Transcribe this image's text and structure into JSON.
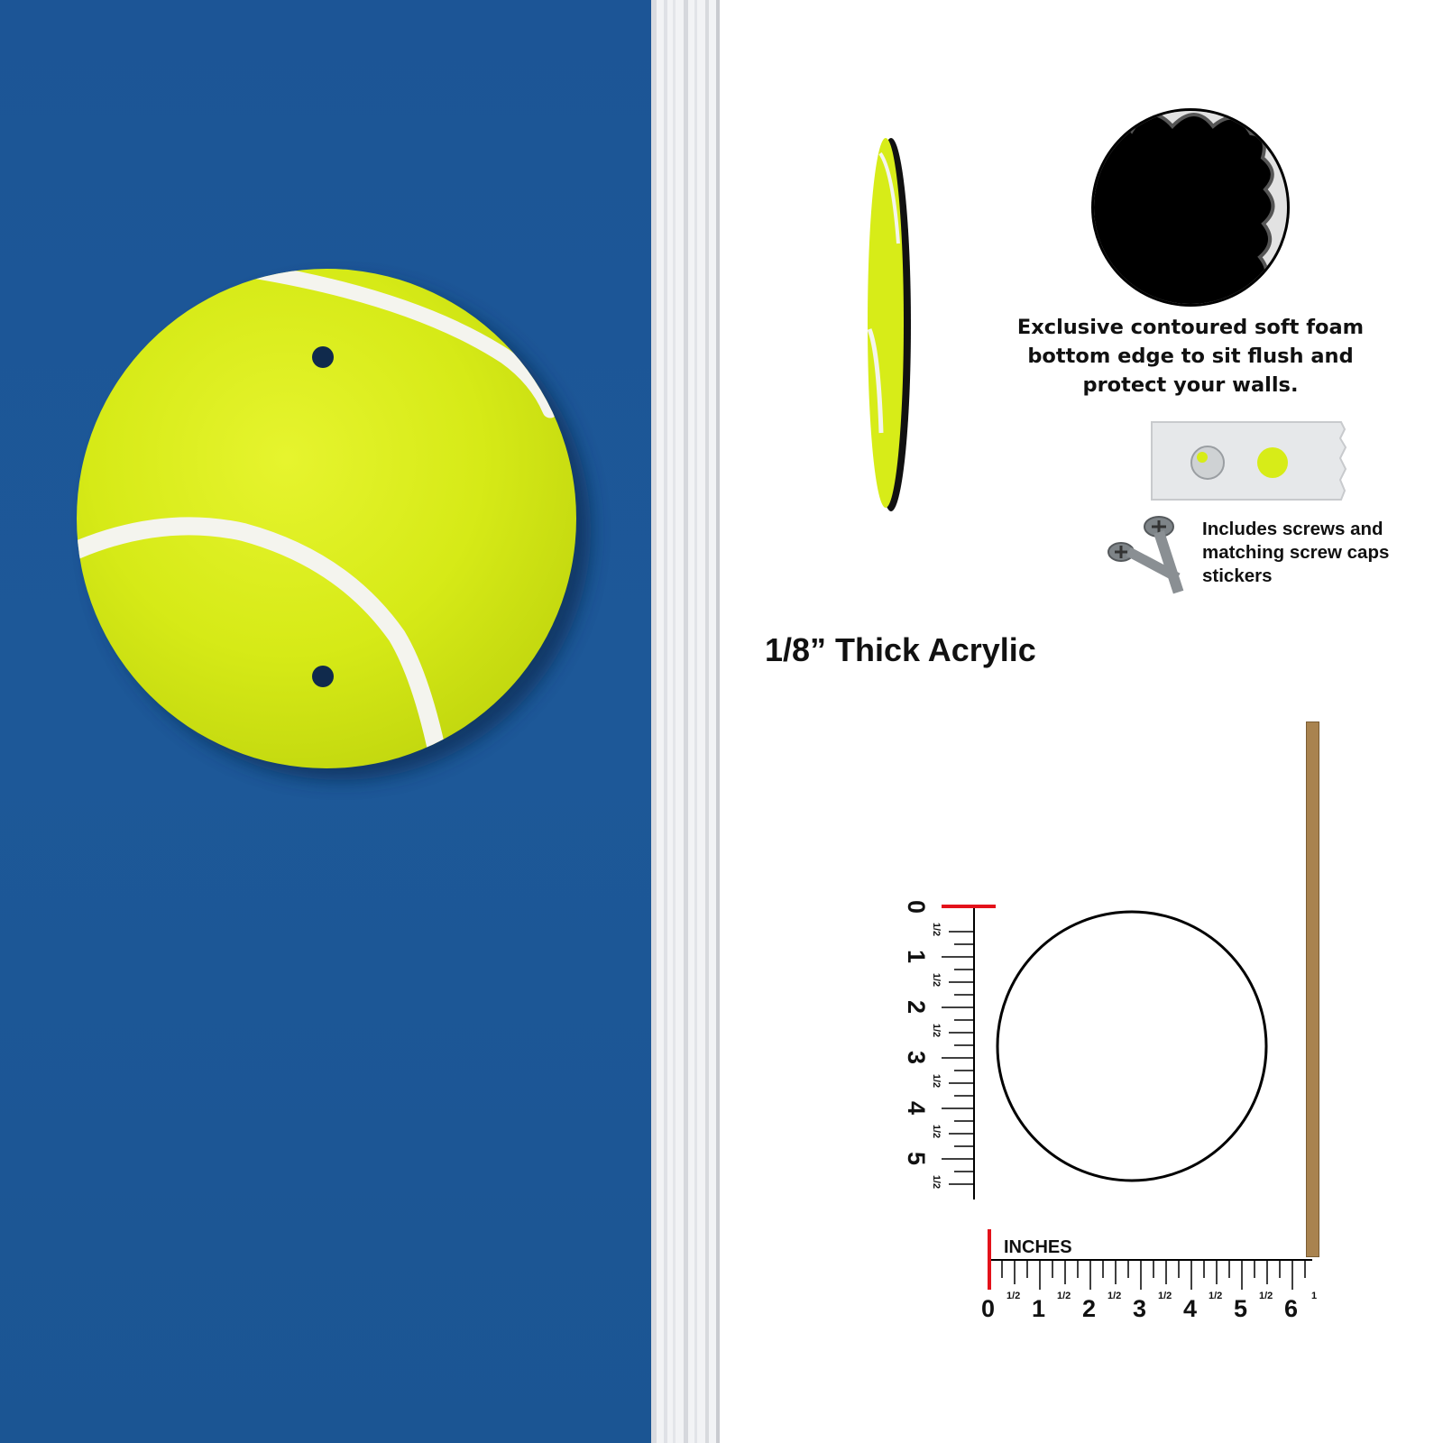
{
  "product": {
    "name": "tennis ball round acrylic sign",
    "colors": {
      "wall_blue": "#1c5596",
      "felt_yellow": "#d7ec18",
      "seam_white": "#f4f4ee",
      "ruler_red": "#e3111a",
      "wood_strip": "#a9834f"
    }
  },
  "callouts": {
    "foam_edge": "Exclusive contoured soft foam bottom edge to sit flush and protect your walls.",
    "screws": "Includes screws and matching screw caps stickers",
    "thickness": "1/8” Thick Acrylic"
  },
  "rulers": {
    "unit_label": "INCHES",
    "vertical_numbers": [
      "0",
      "1",
      "2",
      "3",
      "4",
      "5"
    ],
    "horizontal_numbers": [
      "0",
      "1",
      "2",
      "3",
      "4",
      "5",
      "6"
    ],
    "half_label": "1/2",
    "horizontal_end_mark": "1",
    "sign_diameter_in": 5.5
  },
  "icons": [
    "tennis-ball-icon",
    "screw-icon",
    "screw-cap-sticker-icon",
    "foam-edge-closeup-icon"
  ]
}
